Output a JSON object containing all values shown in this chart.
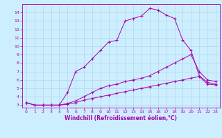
{
  "xlabel": "Windchill (Refroidissement éolien,°C)",
  "bg_color": "#cceeff",
  "grid_color": "#b0d8e8",
  "line_color": "#aa00aa",
  "spine_color": "#aa00aa",
  "xlim": [
    -0.5,
    23.5
  ],
  "ylim": [
    2.7,
    15.0
  ],
  "yticks": [
    3,
    4,
    5,
    6,
    7,
    8,
    9,
    10,
    11,
    12,
    13,
    14
  ],
  "xticks": [
    0,
    1,
    2,
    3,
    4,
    5,
    6,
    7,
    8,
    9,
    10,
    11,
    12,
    13,
    14,
    15,
    16,
    17,
    18,
    19,
    20,
    21,
    22,
    23
  ],
  "line1_x": [
    0,
    1,
    2,
    3,
    4,
    5,
    6,
    7,
    8,
    9,
    10,
    11,
    12,
    13,
    14,
    15,
    16,
    17,
    18,
    19,
    20,
    21,
    22,
    23
  ],
  "line1_y": [
    3.3,
    3.0,
    3.0,
    3.0,
    3.0,
    4.5,
    7.0,
    7.5,
    8.5,
    9.5,
    10.5,
    10.7,
    13.0,
    13.3,
    13.6,
    14.5,
    14.3,
    13.7,
    13.3,
    10.7,
    9.5,
    6.5,
    5.7,
    5.5
  ],
  "line2_x": [
    0,
    1,
    2,
    3,
    4,
    5,
    6,
    7,
    8,
    9,
    10,
    11,
    12,
    13,
    14,
    15,
    16,
    17,
    18,
    19,
    20,
    21,
    22,
    23
  ],
  "line2_y": [
    3.3,
    3.0,
    3.0,
    3.0,
    3.0,
    3.2,
    3.5,
    4.0,
    4.5,
    5.0,
    5.3,
    5.5,
    5.8,
    6.0,
    6.2,
    6.5,
    7.0,
    7.5,
    8.0,
    8.5,
    9.0,
    7.0,
    6.0,
    5.8
  ],
  "line3_x": [
    0,
    1,
    2,
    3,
    4,
    5,
    6,
    7,
    8,
    9,
    10,
    11,
    12,
    13,
    14,
    15,
    16,
    17,
    18,
    19,
    20,
    21,
    22,
    23
  ],
  "line3_y": [
    3.3,
    3.0,
    3.0,
    3.0,
    3.0,
    3.1,
    3.3,
    3.6,
    3.8,
    4.0,
    4.2,
    4.4,
    4.6,
    4.8,
    5.0,
    5.2,
    5.4,
    5.6,
    5.8,
    6.0,
    6.2,
    6.4,
    5.5,
    5.4
  ],
  "tick_fontsize": 4.5,
  "xlabel_fontsize": 5.5,
  "lw": 0.7,
  "ms": 2.5
}
